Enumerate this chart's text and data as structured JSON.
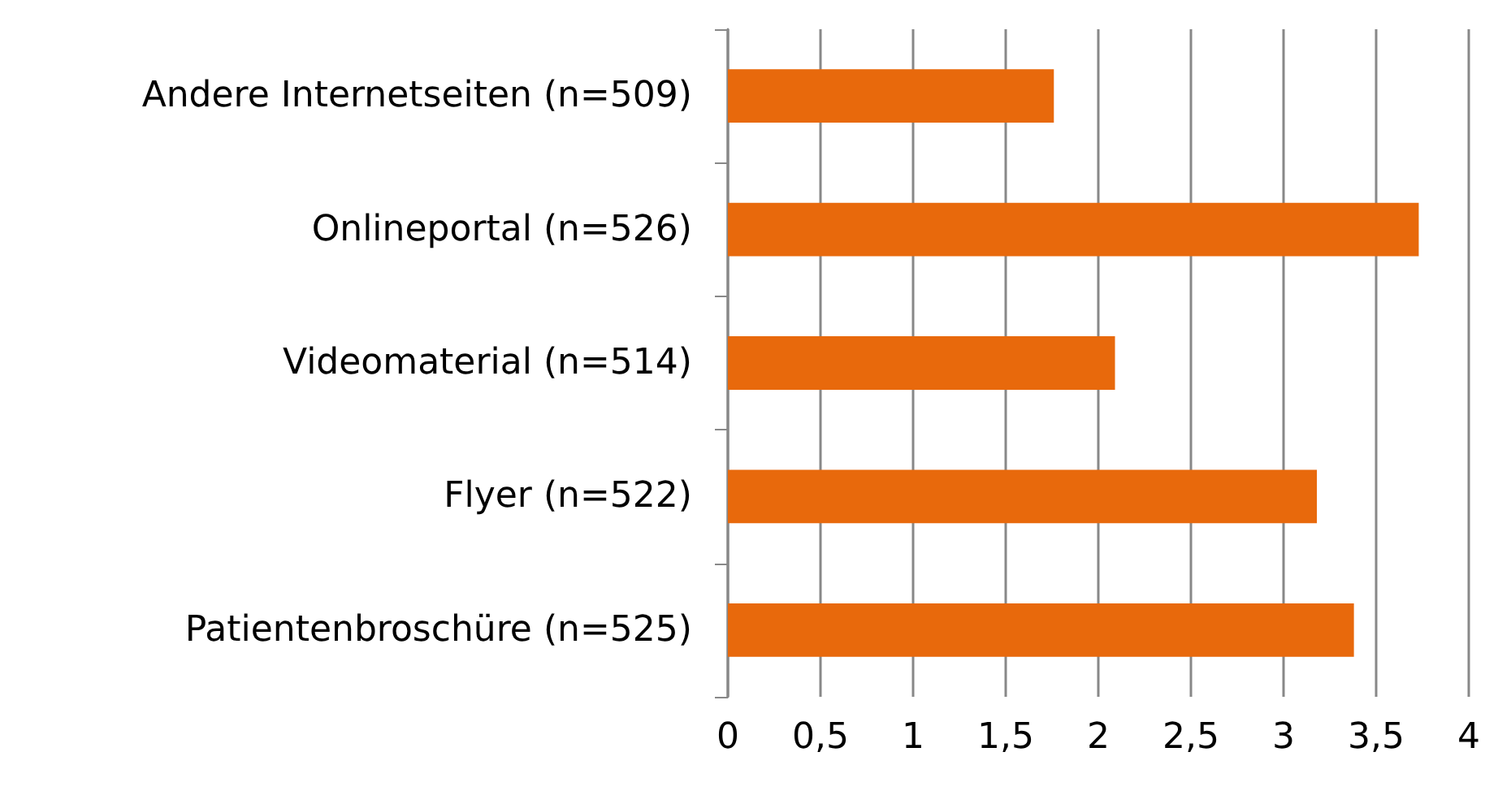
{
  "chart_data": {
    "type": "bar",
    "orientation": "horizontal",
    "categories": [
      "Andere Internetseiten (n=509)",
      "Onlineportal (n=526)",
      "Videomaterial (n=514)",
      "Flyer (n=522)",
      "Patientenbroschüre (n=525)"
    ],
    "values": [
      1.76,
      3.73,
      2.09,
      3.18,
      3.38
    ],
    "color": "#e8690c",
    "xlim": [
      0,
      4
    ],
    "xticks": [
      0,
      {
        "value": 0.5,
        "label": "0,5"
      },
      1,
      {
        "value": 1.5,
        "label": "1,5"
      },
      2,
      {
        "value": 2.5,
        "label": "2,5"
      },
      3,
      {
        "value": 3.5,
        "label": "3,5"
      },
      4
    ],
    "grid": "x"
  }
}
